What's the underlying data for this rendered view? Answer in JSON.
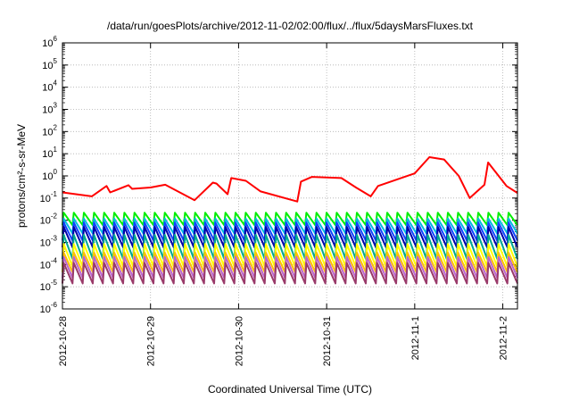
{
  "chart_data": {
    "type": "line",
    "title": "/data/run/goesPlots/archive/2012-11-02/02:00/flux/../flux/5daysMarsFluxes.txt",
    "xlabel": "Coordinated Universal Time (UTC)",
    "ylabel": "protons/cm²-s-sr-MeV",
    "yscale": "log",
    "ylim": [
      1e-06,
      1000000
    ],
    "y_tick_exponents": [
      -6,
      -5,
      -4,
      -3,
      -2,
      -1,
      0,
      1,
      2,
      3,
      4,
      5,
      6
    ],
    "xlim": [
      "2012-10-28T00:00",
      "2012-11-02T04:00"
    ],
    "x_ticks": [
      "2012-10-28",
      "2012-10-29",
      "2012-10-30",
      "2012-10-31",
      "2012-11-1",
      "2012-11-2"
    ],
    "grid": true,
    "series": [
      {
        "color": "#ff0000",
        "times": [
          "2012-10-28T00:00",
          "2012-10-28T08:00",
          "2012-10-28T12:00",
          "2012-10-28T13:00",
          "2012-10-28T18:00",
          "2012-10-28T19:00",
          "2012-10-29T00:00",
          "2012-10-29T04:00",
          "2012-10-29T12:00",
          "2012-10-29T17:00",
          "2012-10-29T18:00",
          "2012-10-29T21:00",
          "2012-10-29T22:00",
          "2012-10-30T02:00",
          "2012-10-30T06:00",
          "2012-10-30T16:00",
          "2012-10-30T17:00",
          "2012-10-30T20:00",
          "2012-10-31T04:00",
          "2012-10-31T08:00",
          "2012-10-31T12:00",
          "2012-10-31T14:00",
          "2012-11-01T00:00",
          "2012-11-01T04:00",
          "2012-11-01T08:00",
          "2012-11-01T12:00",
          "2012-11-01T15:00",
          "2012-11-01T19:00",
          "2012-11-01T20:00",
          "2012-11-02T01:00",
          "2012-11-02T04:00"
        ],
        "values": [
          0.18,
          0.12,
          0.35,
          0.18,
          0.38,
          0.26,
          0.3,
          0.4,
          0.08,
          0.5,
          0.45,
          0.15,
          0.8,
          0.6,
          0.2,
          0.07,
          0.55,
          0.9,
          0.8,
          0.3,
          0.12,
          0.35,
          1.3,
          7.0,
          5.5,
          1.0,
          0.1,
          0.4,
          4.0,
          0.35,
          0.17
        ]
      },
      {
        "color": "#00ee00",
        "base": 0.006,
        "peak": 0.022,
        "teeth": 45
      },
      {
        "color": "#00bbdd",
        "base": 0.0025,
        "peak": 0.012,
        "teeth": 45
      },
      {
        "color": "#1044ff",
        "base": 0.0012,
        "peak": 0.008,
        "teeth": 45
      },
      {
        "color": "#0000aa",
        "base": 0.0006,
        "peak": 0.005,
        "teeth": 45
      },
      {
        "color": "#00a890",
        "base": 0.00018,
        "peak": 0.0022,
        "teeth": 45
      },
      {
        "color": "#ffff00",
        "base": 8e-05,
        "peak": 0.00085,
        "teeth": 45
      },
      {
        "color": "#ffbf00",
        "base": 4.5e-05,
        "peak": 0.00035,
        "teeth": 45
      },
      {
        "color": "#bb66cc",
        "base": 2.5e-05,
        "peak": 0.00022,
        "teeth": 45
      },
      {
        "color": "#9a3a6a",
        "base": 1.4e-05,
        "peak": 0.00012,
        "teeth": 45
      }
    ]
  }
}
